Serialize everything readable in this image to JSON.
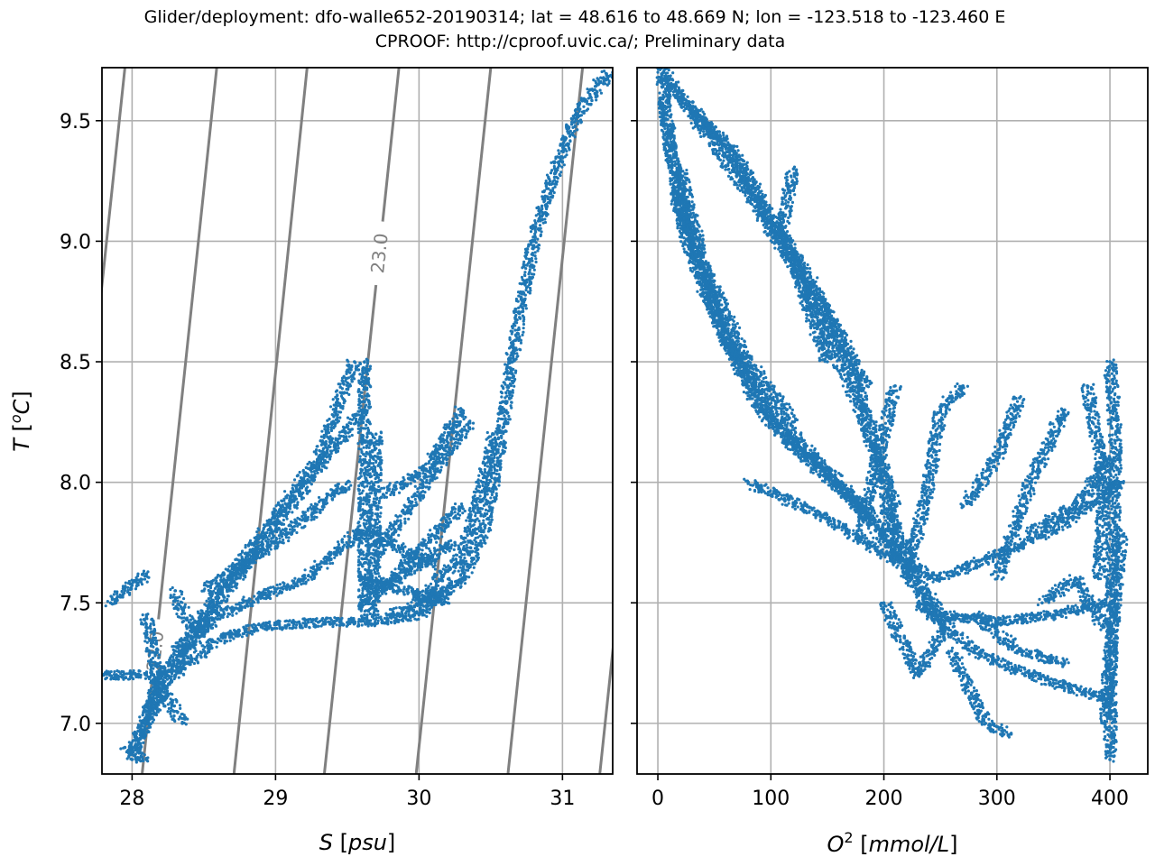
{
  "title": {
    "line1": "Glider/deployment: dfo-walle652-20190314; lat = 48.616 to 48.669 N; lon = -123.518 to -123.460 E",
    "line2": "CPROOF: http://cproof.uvic.ca/; Preliminary data"
  },
  "colors": {
    "points": "#1f77b4",
    "contours": "#808080",
    "grid": "#b0b0b0"
  },
  "chart_data": [
    {
      "type": "scatter",
      "id": "ts",
      "xlabel": {
        "main": "S",
        "unit": "psu"
      },
      "ylabel": {
        "main": "T",
        "sup": "o",
        "unit": "C"
      },
      "xlim": [
        27.79,
        31.35
      ],
      "ylim": [
        6.79,
        9.72
      ],
      "xticks": [
        "28",
        "29",
        "30",
        "31"
      ],
      "yticks": [
        "7.0",
        "7.5",
        "8.0",
        "8.5",
        "9.0",
        "9.5"
      ],
      "grid": true,
      "contours": [
        {
          "level": "21.5",
          "s_bottom": 27.43,
          "s_top": 27.95,
          "labeled": false
        },
        {
          "level": "22.0",
          "s_bottom": 28.07,
          "s_top": 28.59,
          "labeled": true,
          "label_t": 7.3
        },
        {
          "level": "22.5",
          "s_bottom": 28.71,
          "s_top": 29.22,
          "labeled": false
        },
        {
          "level": "23.0",
          "s_bottom": 29.34,
          "s_top": 29.86,
          "labeled": true,
          "label_t": 8.95
        },
        {
          "level": "23.5",
          "s_bottom": 29.98,
          "s_top": 30.5,
          "labeled": false
        },
        {
          "level": "24.0",
          "s_bottom": 30.62,
          "s_top": 31.14,
          "labeled": false
        },
        {
          "level": "24.5",
          "s_bottom": 31.26,
          "s_top": 31.78,
          "labeled": false
        }
      ],
      "traces": [
        [
          [
            29.65,
            7.42
          ],
          [
            30.0,
            7.45
          ],
          [
            30.3,
            7.6
          ],
          [
            30.45,
            7.8
          ],
          [
            30.55,
            8.1
          ],
          [
            30.62,
            8.4
          ],
          [
            30.7,
            8.7
          ],
          [
            30.8,
            9.0
          ],
          [
            30.95,
            9.3
          ],
          [
            31.1,
            9.52
          ],
          [
            31.25,
            9.65
          ],
          [
            31.35,
            9.7
          ]
        ],
        [
          [
            30.0,
            7.5
          ],
          [
            30.3,
            7.7
          ],
          [
            30.45,
            8.0
          ],
          [
            30.52,
            8.2
          ]
        ],
        [
          [
            28.3,
            7.2
          ],
          [
            28.6,
            7.35
          ],
          [
            28.9,
            7.4
          ],
          [
            29.3,
            7.42
          ],
          [
            29.65,
            7.42
          ]
        ],
        [
          [
            29.62,
            7.45
          ],
          [
            29.62,
            8.5
          ]
        ],
        [
          [
            29.68,
            7.45
          ],
          [
            29.7,
            8.2
          ]
        ],
        [
          [
            29.65,
            7.5
          ],
          [
            30.3,
            7.9
          ]
        ],
        [
          [
            29.7,
            7.7
          ],
          [
            30.35,
            8.25
          ]
        ],
        [
          [
            29.6,
            7.6
          ],
          [
            30.2,
            7.5
          ]
        ],
        [
          [
            29.65,
            7.8
          ],
          [
            30.1,
            7.65
          ]
        ],
        [
          [
            29.7,
            7.55
          ],
          [
            30.25,
            7.75
          ]
        ],
        [
          [
            29.75,
            7.95
          ],
          [
            30.05,
            8.05
          ],
          [
            30.3,
            8.3
          ]
        ],
        [
          [
            29.8,
            7.45
          ],
          [
            30.2,
            7.55
          ]
        ],
        [
          [
            28.3,
            7.3
          ],
          [
            28.8,
            7.7
          ],
          [
            29.3,
            8.1
          ],
          [
            29.55,
            8.5
          ]
        ],
        [
          [
            28.1,
            7.05
          ],
          [
            28.6,
            7.5
          ],
          [
            29.1,
            7.9
          ],
          [
            29.6,
            8.3
          ]
        ],
        [
          [
            28.0,
            6.85
          ],
          [
            28.2,
            7.2
          ],
          [
            28.6,
            7.45
          ],
          [
            29.2,
            7.6
          ],
          [
            29.6,
            7.8
          ]
        ],
        [
          [
            28.5,
            7.55
          ],
          [
            29.0,
            7.75
          ],
          [
            29.5,
            8.0
          ]
        ],
        [
          [
            27.85,
            7.5
          ],
          [
            28.1,
            7.62
          ]
        ],
        [
          [
            27.8,
            7.2
          ],
          [
            28.1,
            7.2
          ]
        ],
        [
          [
            28.1,
            7.45
          ],
          [
            28.2,
            7.1
          ],
          [
            28.0,
            6.9
          ]
        ],
        [
          [
            28.15,
            7.2
          ],
          [
            28.35,
            7.0
          ]
        ],
        [
          [
            27.95,
            6.9
          ],
          [
            28.1,
            6.85
          ]
        ],
        [
          [
            28.3,
            7.55
          ],
          [
            28.4,
            7.4
          ]
        ]
      ]
    },
    {
      "type": "scatter",
      "id": "to2",
      "xlabel": {
        "main": "O",
        "sup": "2",
        "unit": "mmol/L"
      },
      "xlim": [
        -18.4,
        433.5
      ],
      "ylim": [
        6.79,
        9.72
      ],
      "xticks": [
        "0",
        "100",
        "200",
        "300",
        "400"
      ],
      "yticks": [
        "7.0",
        "7.5",
        "8.0",
        "8.5",
        "9.0",
        "9.5"
      ],
      "grid": true,
      "traces": [
        [
          [
            3,
            9.72
          ],
          [
            10,
            9.4
          ],
          [
            30,
            9.0
          ],
          [
            60,
            8.6
          ],
          [
            100,
            8.3
          ],
          [
            150,
            8.05
          ],
          [
            200,
            7.8
          ],
          [
            230,
            7.55
          ],
          [
            250,
            7.42
          ]
        ],
        [
          [
            5,
            9.7
          ],
          [
            20,
            9.6
          ],
          [
            50,
            9.4
          ],
          [
            80,
            9.2
          ],
          [
            120,
            8.9
          ],
          [
            150,
            8.6
          ],
          [
            180,
            8.3
          ],
          [
            200,
            8.0
          ],
          [
            215,
            7.7
          ]
        ],
        [
          [
            10,
            9.65
          ],
          [
            40,
            9.5
          ],
          [
            70,
            9.35
          ],
          [
            100,
            9.1
          ],
          [
            140,
            8.8
          ],
          [
            170,
            8.5
          ],
          [
            190,
            8.2
          ],
          [
            210,
            7.9
          ]
        ],
        [
          [
            30,
            9.55
          ],
          [
            60,
            9.4
          ],
          [
            110,
            9.0
          ],
          [
            150,
            8.7
          ],
          [
            185,
            8.4
          ]
        ],
        [
          [
            5,
            9.6
          ],
          [
            20,
            9.1
          ],
          [
            40,
            8.8
          ],
          [
            70,
            8.5
          ],
          [
            110,
            8.2
          ],
          [
            160,
            8.0
          ],
          [
            210,
            7.7
          ]
        ],
        [
          [
            20,
            9.3
          ],
          [
            50,
            8.7
          ],
          [
            90,
            8.3
          ],
          [
            130,
            8.1
          ],
          [
            180,
            7.9
          ]
        ],
        [
          [
            15,
            9.2
          ],
          [
            40,
            8.9
          ],
          [
            80,
            8.5
          ],
          [
            120,
            8.25
          ]
        ],
        [
          [
            80,
            8.0
          ],
          [
            150,
            7.85
          ],
          [
            200,
            7.7
          ],
          [
            250,
            7.6
          ]
        ],
        [
          [
            200,
            7.9
          ],
          [
            230,
            7.6
          ],
          [
            250,
            7.45
          ]
        ],
        [
          [
            250,
            7.45
          ],
          [
            300,
            7.42
          ],
          [
            350,
            7.45
          ],
          [
            400,
            7.5
          ]
        ],
        [
          [
            250,
            7.6
          ],
          [
            300,
            7.7
          ],
          [
            350,
            7.8
          ],
          [
            410,
            8.0
          ]
        ],
        [
          [
            230,
            7.5
          ],
          [
            280,
            7.3
          ],
          [
            330,
            7.2
          ],
          [
            400,
            7.1
          ]
        ],
        [
          [
            260,
            7.3
          ],
          [
            290,
            7.0
          ],
          [
            310,
            6.95
          ]
        ],
        [
          [
            400,
            6.85
          ],
          [
            402,
            7.5
          ],
          [
            405,
            8.2
          ],
          [
            400,
            8.5
          ]
        ],
        [
          [
            395,
            7.0
          ],
          [
            410,
            7.8
          ]
        ],
        [
          [
            300,
            7.6
          ],
          [
            330,
            8.0
          ],
          [
            360,
            8.3
          ]
        ],
        [
          [
            220,
            7.6
          ],
          [
            240,
            8.0
          ],
          [
            250,
            8.3
          ],
          [
            270,
            8.4
          ]
        ],
        [
          [
            180,
            7.8
          ],
          [
            200,
            8.2
          ],
          [
            210,
            8.4
          ]
        ],
        [
          [
            330,
            7.8
          ],
          [
            370,
            7.9
          ],
          [
            400,
            8.1
          ]
        ],
        [
          [
            200,
            7.5
          ],
          [
            230,
            7.2
          ],
          [
            260,
            7.45
          ]
        ],
        [
          [
            120,
            9.3
          ],
          [
            110,
            9.05
          ],
          [
            150,
            8.5
          ]
        ],
        [
          [
            270,
            7.9
          ],
          [
            300,
            8.1
          ],
          [
            320,
            8.35
          ]
        ],
        [
          [
            340,
            7.5
          ],
          [
            370,
            7.6
          ],
          [
            395,
            7.4
          ]
        ],
        [
          [
            280,
            7.45
          ],
          [
            320,
            7.3
          ],
          [
            360,
            7.25
          ]
        ],
        [
          [
            380,
            8.4
          ],
          [
            395,
            8.0
          ],
          [
            390,
            7.6
          ]
        ]
      ]
    }
  ]
}
